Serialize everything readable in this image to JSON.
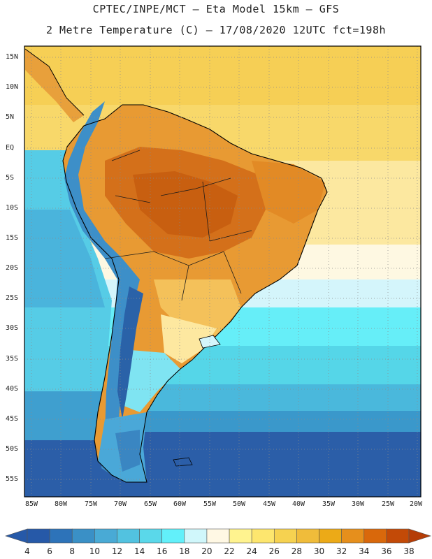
{
  "header": {
    "line1": "CPTEC/INPE/MCT –  Eta Model 15km – GFS",
    "line2": "2 Metre Temperature (C) – 17/08/2020 12UTC fct=198h"
  },
  "map": {
    "lat_ticks": [
      "15N",
      "10N",
      "5N",
      "EQ",
      "5S",
      "10S",
      "15S",
      "20S",
      "25S",
      "30S",
      "35S",
      "40S",
      "45S",
      "50S",
      "55S"
    ],
    "lon_ticks": [
      "85W",
      "80W",
      "75W",
      "70W",
      "65W",
      "60W",
      "55W",
      "50W",
      "45W",
      "40W",
      "35W",
      "30W",
      "25W",
      "20W"
    ]
  },
  "colorbar": {
    "labels": [
      "4",
      "6",
      "8",
      "10",
      "12",
      "14",
      "16",
      "18",
      "20",
      "22",
      "24",
      "26",
      "28",
      "30",
      "32",
      "34",
      "36",
      "38"
    ],
    "colors": [
      "#2659a8",
      "#2d73b9",
      "#3a90c6",
      "#49aad5",
      "#52c2e0",
      "#5ad8ea",
      "#62f0fa",
      "#d0f7fb",
      "#fff8e4",
      "#fff38f",
      "#fde66e",
      "#f6d250",
      "#f0bc3a",
      "#ecaa17",
      "#e68f1c",
      "#d9680b",
      "#c34a07"
    ],
    "low_arrow_color": "#2659a8",
    "high_arrow_color": "#b53c06"
  }
}
